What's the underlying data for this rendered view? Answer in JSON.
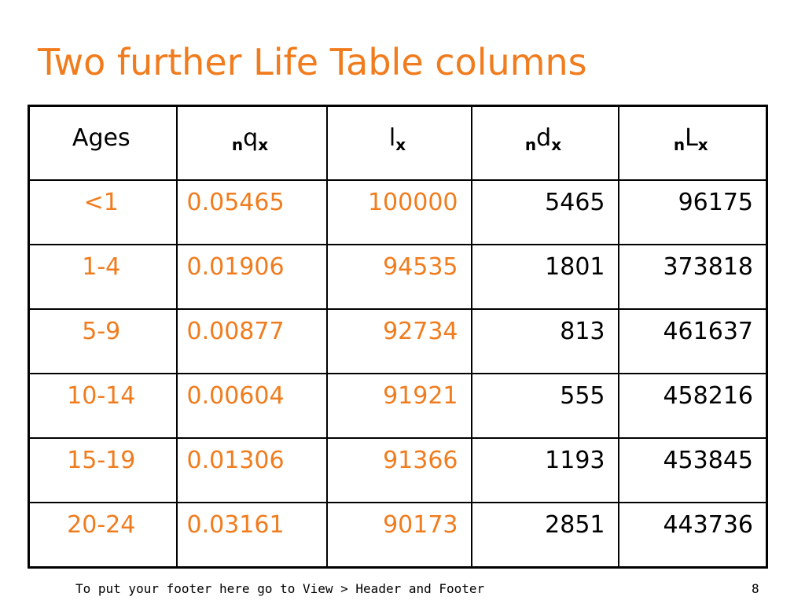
{
  "slide": {
    "title": "Two further Life Table columns",
    "footer": "To put your footer here go to View > Header and Footer",
    "page_number": "8"
  },
  "colors": {
    "accent": "#f07c1e",
    "text": "#000000"
  },
  "table": {
    "headers": [
      {
        "label": "Ages"
      },
      {
        "prefix": "n",
        "symbol": "q",
        "subscript": "x"
      },
      {
        "prefix": "",
        "symbol": "l",
        "subscript": "x"
      },
      {
        "prefix": "n",
        "symbol": "d",
        "subscript": "x"
      },
      {
        "prefix": "n",
        "symbol": "L",
        "subscript": "x"
      }
    ],
    "rows": [
      [
        "<1",
        "0.05465",
        "100000",
        "5465",
        "96175"
      ],
      [
        "1-4",
        "0.01906",
        "94535",
        "1801",
        "373818"
      ],
      [
        "5-9",
        "0.00877",
        "92734",
        "813",
        "461637"
      ],
      [
        "10-14",
        "0.00604",
        "91921",
        "555",
        "458216"
      ],
      [
        "15-19",
        "0.01306",
        "91366",
        "1193",
        "453845"
      ],
      [
        "20-24",
        "0.03161",
        "90173",
        "2851",
        "443736"
      ]
    ]
  }
}
